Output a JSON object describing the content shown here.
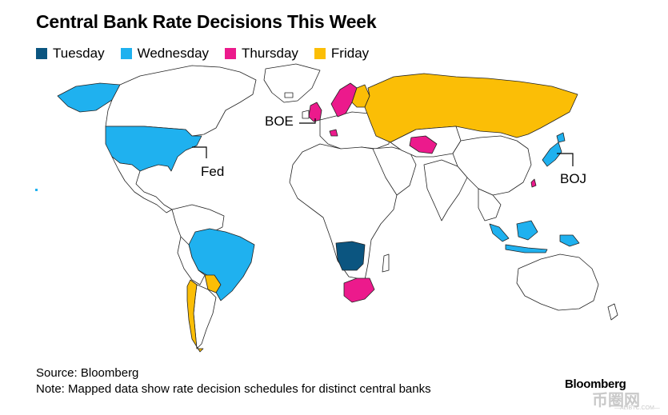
{
  "title": "Central Bank Rate Decisions This Week",
  "legend": [
    {
      "label": "Tuesday",
      "color": "#0b5580"
    },
    {
      "label": "Wednesday",
      "color": "#1fb1ef"
    },
    {
      "label": "Thursday",
      "color": "#ec1a8c"
    },
    {
      "label": "Friday",
      "color": "#fbbe06"
    }
  ],
  "colors": {
    "tuesday": "#0b5580",
    "wednesday": "#1fb1ef",
    "thursday": "#ec1a8c",
    "friday": "#fbbe06",
    "land_unselected": "#ffffff",
    "border": "#222222"
  },
  "map_labels": {
    "fed": "Fed",
    "boe": "BOE",
    "boj": "BOJ"
  },
  "regions": {
    "tuesday": [
      "Angola"
    ],
    "wednesday": [
      "United States",
      "Brazil",
      "Japan",
      "Indonesia",
      "Papua New Guinea"
    ],
    "thursday": [
      "United Kingdom",
      "Norway/Sweden",
      "South Africa",
      "Uzbekistan",
      "Taiwan",
      "Switzerland"
    ],
    "friday": [
      "Russia",
      "Chile",
      "Paraguay",
      "Finland"
    ]
  },
  "footer": {
    "source": "Source: Bloomberg",
    "note": "Note: Mapped data show rate decision schedules for distinct central banks",
    "brand": "Bloomberg",
    "watermark": "币圈网",
    "watermark_sub": "—ALIBTC.COM—"
  }
}
